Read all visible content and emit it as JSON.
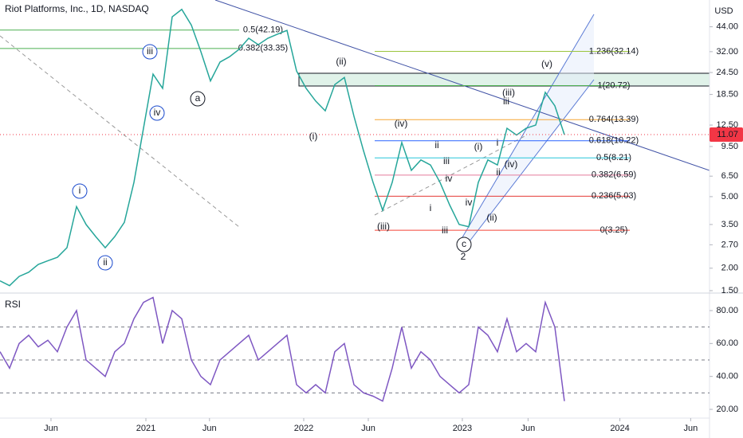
{
  "chart_data": [
    {
      "type": "line",
      "title": "Riot Platforms, Inc., 1D, NASDAQ",
      "currency": "USD",
      "log_scale": true,
      "xlim": [
        0,
        74.17
      ],
      "ylim": [
        1.5,
        62
      ],
      "yticks": [
        {
          "value": 1.5,
          "label": "1.50"
        },
        {
          "value": 2,
          "label": "2.00"
        },
        {
          "value": 2.7,
          "label": "2.70"
        },
        {
          "value": 3.5,
          "label": "3.50"
        },
        {
          "value": 5,
          "label": "5.00"
        },
        {
          "value": 6.5,
          "label": "6.50"
        },
        {
          "value": 9.5,
          "label": "9.50"
        },
        {
          "value": 12.5,
          "label": "12.50"
        },
        {
          "value": 18.5,
          "label": "18.50"
        },
        {
          "value": 24.5,
          "label": "24.50"
        },
        {
          "value": 32,
          "label": "32.00"
        },
        {
          "value": 44,
          "label": "44.00"
        }
      ],
      "last_value": 11.07,
      "last_value_color": "#f23645",
      "series": [
        {
          "color": "#26a69a",
          "values": [
            1.7,
            1.6,
            1.8,
            1.9,
            2.1,
            2.2,
            2.3,
            2.6,
            4.4,
            3.5,
            3.0,
            2.6,
            3.0,
            3.6,
            6.0,
            12,
            24,
            20,
            50,
            55,
            45,
            32,
            22,
            28,
            30,
            33,
            38,
            35,
            38,
            40,
            42,
            25,
            20,
            17,
            15,
            21,
            23,
            14,
            9,
            6,
            4.2,
            6,
            10,
            7,
            8,
            7.5,
            6,
            4.5,
            3.5,
            3.4,
            6,
            8,
            7.5,
            12,
            11,
            12,
            12.5,
            19,
            16,
            11.07
          ]
        }
      ],
      "fib_levels": [
        {
          "value": 32.14,
          "label": "1.236(32.14)",
          "color": "#9bc53d"
        },
        {
          "value": 20.72,
          "label": "1(20.72)",
          "color": "#4caf50"
        },
        {
          "value": 13.39,
          "label": "0.764(13.39)",
          "color": "#f7a533"
        },
        {
          "value": 10.22,
          "label": "0.618(10.22)",
          "color": "#2962ff"
        },
        {
          "value": 8.21,
          "label": "0.5(8.21)",
          "color": "#26c6da"
        },
        {
          "value": 6.59,
          "label": "0.382(6.59)",
          "color": "#e57b9b"
        },
        {
          "value": 5.03,
          "label": "0.236(5.03)",
          "color": "#e53935"
        },
        {
          "value": 3.25,
          "label": "0(3.25)",
          "color": "#f44336"
        }
      ],
      "left_fib_levels": [
        {
          "value": 42.19,
          "label": "0.5(42.19)",
          "color": "#4caf50"
        },
        {
          "value": 33.35,
          "label": "0.382(33.35)",
          "color": "#4caf50"
        }
      ],
      "annotations": [
        {
          "text": "i",
          "color": "#1848cc"
        },
        {
          "text": "ii",
          "color": "#1848cc"
        },
        {
          "text": "iii",
          "color": "#1848cc"
        },
        {
          "text": "iv",
          "color": "#1848cc"
        },
        {
          "text": "a",
          "color": "#131722"
        },
        {
          "text": "(ii)",
          "color": "#089981"
        },
        {
          "text": "(i)",
          "color": "#089981"
        },
        {
          "text": "(iii)",
          "color": "#089981"
        },
        {
          "text": "(iv)",
          "color": "#089981"
        },
        {
          "text": "(iii)",
          "color": "#131722"
        },
        {
          "text": "(v)",
          "color": "#131722"
        },
        {
          "text": "(i)",
          "color": "#131722"
        },
        {
          "text": "(ii)",
          "color": "#131722"
        },
        {
          "text": "(iv)",
          "color": "#131722"
        },
        {
          "text": "2",
          "color": "#1848cc"
        },
        {
          "text": "c",
          "color": "#131722"
        },
        {
          "text": "ii",
          "color": "#f57c00"
        },
        {
          "text": "iii",
          "color": "#f57c00"
        },
        {
          "text": "iv",
          "color": "#f57c00"
        },
        {
          "text": "i",
          "color": "#f57c00"
        },
        {
          "text": "iii",
          "color": "#f57c00"
        },
        {
          "text": "iv",
          "color": "#f57c00"
        },
        {
          "text": "iii",
          "color": "#e53935"
        },
        {
          "text": "i",
          "color": "#e53935"
        },
        {
          "text": "ii",
          "color": "#e53935"
        }
      ]
    },
    {
      "type": "line",
      "title": "RSI",
      "xlim": [
        0,
        74.17
      ],
      "ylim": [
        14.7,
        88.7
      ],
      "yticks": [
        {
          "value": 20,
          "label": "20.00"
        },
        {
          "value": 40,
          "label": "40.00"
        },
        {
          "value": 60,
          "label": "60.00"
        },
        {
          "value": 80,
          "label": "80.00"
        }
      ],
      "levels": [
        70,
        50,
        30
      ],
      "xticks": [
        {
          "value": 5.33,
          "label": "Jun"
        },
        {
          "value": 15.25,
          "label": "2021"
        },
        {
          "value": 21.9,
          "label": "Jun"
        },
        {
          "value": 31.75,
          "label": "2022"
        },
        {
          "value": 38.5,
          "label": "Jun"
        },
        {
          "value": 48.33,
          "label": "2023"
        },
        {
          "value": 55.2,
          "label": "Jun"
        },
        {
          "value": 64.8,
          "label": "2024"
        },
        {
          "value": 72.2,
          "label": "Jun"
        }
      ],
      "series": [
        {
          "color": "#7e57c2",
          "values": [
            55,
            45,
            60,
            65,
            58,
            62,
            55,
            70,
            80,
            50,
            45,
            40,
            55,
            60,
            75,
            85,
            88,
            60,
            80,
            75,
            50,
            40,
            35,
            50,
            55,
            60,
            65,
            50,
            55,
            60,
            65,
            35,
            30,
            35,
            30,
            55,
            60,
            35,
            30,
            28,
            25,
            45,
            70,
            45,
            55,
            50,
            40,
            35,
            30,
            35,
            70,
            65,
            55,
            75,
            55,
            60,
            55,
            85,
            70,
            25
          ]
        }
      ]
    }
  ]
}
